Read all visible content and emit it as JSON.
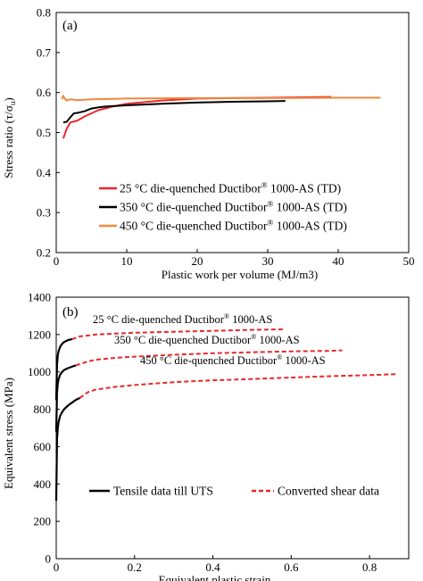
{
  "chart_data": [
    {
      "type": "line",
      "panel_label": "(a)",
      "xlabel": "Plastic work per volume (MJ/m3)",
      "ylabel": "Stress ratio (τ/σ",
      "ylabel_sub": "u",
      "ylabel_end": ")",
      "xlim": [
        0,
        50
      ],
      "ylim": [
        0.2,
        0.8
      ],
      "x_ticks": [
        "0",
        "10",
        "20",
        "30",
        "40",
        "50"
      ],
      "y_ticks": [
        "0.2",
        "0.3",
        "0.4",
        "0.5",
        "0.6",
        "0.7",
        "0.8"
      ],
      "grid": false,
      "legend_position": "lower-center",
      "series": [
        {
          "name_prefix": "25 °C die-quenched Ductibor",
          "name_sup": "®",
          "name_suffix": " 1000-AS (TD)",
          "color": "#e8282b",
          "x": [
            1.0,
            1.2,
            1.5,
            2.0,
            3.0,
            4.0,
            5.0,
            6.0,
            8.0,
            10.0,
            15.0,
            20.0,
            25.0,
            30.0,
            35.0,
            39.0
          ],
          "y": [
            0.485,
            0.495,
            0.51,
            0.525,
            0.53,
            0.54,
            0.548,
            0.556,
            0.565,
            0.572,
            0.58,
            0.585,
            0.586,
            0.587,
            0.588,
            0.589
          ]
        },
        {
          "name_prefix": "350 °C die-quenched Ductibor",
          "name_sup": "®",
          "name_suffix": " 1000-AS (TD)",
          "color": "#000000",
          "x": [
            1.0,
            1.5,
            2.0,
            2.5,
            3.0,
            4.0,
            5.0,
            6.0,
            7.0,
            8.0,
            10.0,
            15.0,
            20.0,
            25.0,
            30.0,
            32.5
          ],
          "y": [
            0.525,
            0.527,
            0.538,
            0.548,
            0.549,
            0.553,
            0.56,
            0.563,
            0.565,
            0.566,
            0.568,
            0.572,
            0.575,
            0.577,
            0.578,
            0.579
          ]
        },
        {
          "name_prefix": "450 °C die-quenched Ductibor",
          "name_sup": "®",
          "name_suffix": " 1000-AS (TD)",
          "color": "#f0883e",
          "x": [
            0.8,
            1.0,
            1.2,
            1.5,
            2.0,
            3.0,
            5.0,
            10.0,
            20.0,
            30.0,
            40.0,
            46.0
          ],
          "y": [
            0.583,
            0.592,
            0.585,
            0.58,
            0.583,
            0.581,
            0.583,
            0.585,
            0.586,
            0.586,
            0.587,
            0.587
          ]
        }
      ]
    },
    {
      "type": "line",
      "panel_label": "(b)",
      "xlabel": "Equivalent plastic strain",
      "ylabel": "Equivalent stress (MPa)",
      "xlim": [
        0,
        0.9
      ],
      "ylim": [
        0,
        1400
      ],
      "x_ticks": [
        "0",
        "0.2",
        "0.4",
        "0.6",
        "0.8"
      ],
      "y_ticks": [
        "0",
        "200",
        "400",
        "600",
        "800",
        "1000",
        "1200",
        "1400"
      ],
      "grid": false,
      "legend_position": "lower",
      "legend": [
        {
          "label": "Tensile data till UTS",
          "style": "solid",
          "color": "#000000"
        },
        {
          "label": "Converted shear data",
          "style": "dashed",
          "color": "#e8282b"
        }
      ],
      "curve_labels": [
        {
          "prefix": "25 °C die-quenched Ductibor",
          "sup": "®",
          "suffix": " 1000-AS"
        },
        {
          "prefix": "350 °C die-quenched Ductibor",
          "sup": "®",
          "suffix": " 1000-AS"
        },
        {
          "prefix": "450 °C die-quenched Ductibor",
          "sup": "®",
          "suffix": " 1000-AS"
        }
      ],
      "tensile_series": [
        {
          "x": [
            0.0,
            0.002,
            0.004,
            0.006,
            0.01,
            0.015,
            0.02,
            0.03,
            0.04
          ],
          "y": [
            850,
            1040,
            1090,
            1110,
            1135,
            1150,
            1160,
            1170,
            1175
          ]
        },
        {
          "x": [
            0.0,
            0.002,
            0.004,
            0.006,
            0.01,
            0.015,
            0.02,
            0.03,
            0.04,
            0.05
          ],
          "y": [
            680,
            890,
            940,
            960,
            985,
            1000,
            1010,
            1020,
            1028,
            1035
          ]
        },
        {
          "x": [
            0.0,
            0.002,
            0.004,
            0.006,
            0.01,
            0.015,
            0.02,
            0.03,
            0.04,
            0.05,
            0.06
          ],
          "y": [
            310,
            640,
            700,
            730,
            765,
            785,
            800,
            820,
            835,
            850,
            860
          ]
        }
      ],
      "shear_series": [
        {
          "x": [
            0.04,
            0.06,
            0.1,
            0.15,
            0.2,
            0.3,
            0.4,
            0.5,
            0.58
          ],
          "y": [
            1175,
            1190,
            1200,
            1205,
            1210,
            1215,
            1220,
            1225,
            1228
          ]
        },
        {
          "x": [
            0.05,
            0.08,
            0.1,
            0.15,
            0.2,
            0.3,
            0.4,
            0.5,
            0.6,
            0.7,
            0.73
          ],
          "y": [
            1035,
            1055,
            1065,
            1075,
            1082,
            1092,
            1100,
            1105,
            1110,
            1113,
            1115
          ]
        },
        {
          "x": [
            0.06,
            0.08,
            0.1,
            0.15,
            0.2,
            0.3,
            0.4,
            0.5,
            0.6,
            0.7,
            0.8,
            0.87
          ],
          "y": [
            860,
            890,
            905,
            920,
            930,
            945,
            955,
            962,
            970,
            977,
            983,
            988
          ]
        }
      ]
    }
  ]
}
